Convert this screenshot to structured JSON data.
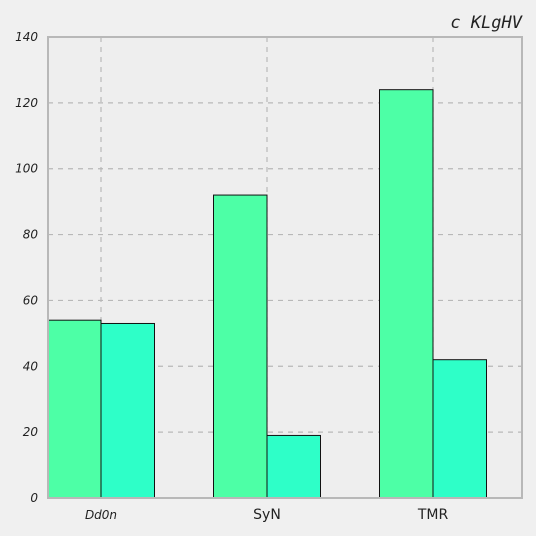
{
  "chart_data": {
    "type": "bar",
    "title": "c KLgHV",
    "categories": [
      "Dd0n",
      "SyN",
      "TMR"
    ],
    "series": [
      {
        "values": [
          54,
          92,
          124
        ],
        "color": "#4dffa6"
      },
      {
        "values": [
          53,
          19,
          42
        ],
        "color": "#2effc8"
      }
    ],
    "ylim": [
      0,
      140
    ],
    "yticks": [
      0,
      20,
      40,
      60,
      80,
      100,
      120,
      140
    ],
    "grid": true,
    "xlabel": "",
    "ylabel": ""
  }
}
